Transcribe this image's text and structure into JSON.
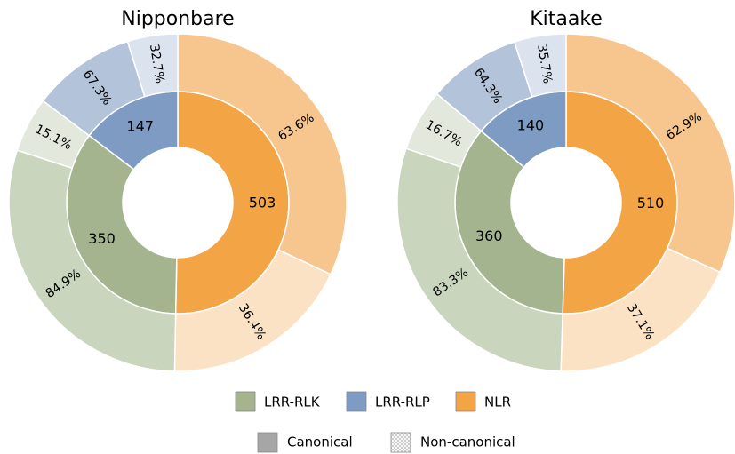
{
  "chart_data": [
    {
      "type": "pie",
      "title": "Nipponbare",
      "categories": [
        "LRR-RLK",
        "LRR-RLP",
        "NLR"
      ],
      "values": [
        350,
        147,
        503
      ],
      "colors": [
        "#a3b48f",
        "#7d9bc3",
        "#f3a545"
      ],
      "subseries": [
        {
          "name": "Canonical",
          "values": [
            84.9,
            67.3,
            63.6
          ],
          "value_labels": [
            "84.9%",
            "67.3%",
            "63.6%"
          ],
          "colors": [
            "#c9d5bd",
            "#b2c3da",
            "#f6c68e"
          ]
        },
        {
          "name": "Non-canonical",
          "values": [
            15.1,
            32.7,
            36.4
          ],
          "value_labels": [
            "15.1%",
            "32.7%",
            "36.4%"
          ],
          "colors": [
            "#e3e8dc",
            "#dbe3ee",
            "#fbe2c4"
          ]
        }
      ]
    },
    {
      "type": "pie",
      "title": "Kitaake",
      "categories": [
        "LRR-RLK",
        "LRR-RLP",
        "NLR"
      ],
      "values": [
        360,
        140,
        510
      ],
      "colors": [
        "#a3b48f",
        "#7d9bc3",
        "#f3a545"
      ],
      "subseries": [
        {
          "name": "Canonical",
          "values": [
            83.3,
            64.3,
            62.9
          ],
          "value_labels": [
            "83.3%",
            "64.3%",
            "62.9%"
          ],
          "colors": [
            "#c9d5bd",
            "#b2c3da",
            "#f6c68e"
          ]
        },
        {
          "name": "Non-canonical",
          "values": [
            16.7,
            35.7,
            37.1
          ],
          "value_labels": [
            "16.7%",
            "35.7%",
            "37.1%"
          ],
          "colors": [
            "#e3e8dc",
            "#dbe3ee",
            "#fbe2c4"
          ]
        }
      ]
    }
  ]
}
